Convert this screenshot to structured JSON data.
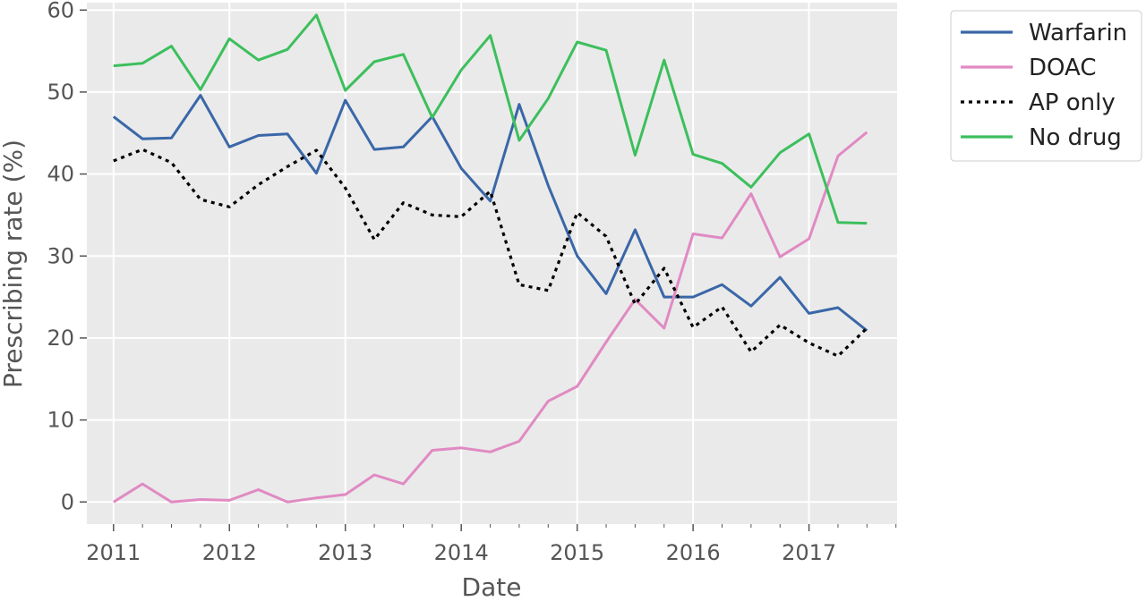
{
  "chart_data": {
    "type": "line",
    "xlabel": "Date",
    "ylabel": "Prescribing rate (%)",
    "xlim": [
      2010.77,
      2017.76
    ],
    "ylim": [
      -2.7,
      60.9
    ],
    "x_ticks": [
      2011,
      2012,
      2013,
      2014,
      2015,
      2016,
      2017
    ],
    "y_ticks": [
      0,
      10,
      20,
      30,
      40,
      50,
      60
    ],
    "grid": true,
    "legend_position": "upper-right-outside",
    "x": [
      2011.0,
      2011.25,
      2011.5,
      2011.75,
      2012.0,
      2012.25,
      2012.5,
      2012.75,
      2013.0,
      2013.25,
      2013.5,
      2013.75,
      2014.0,
      2014.25,
      2014.5,
      2014.75,
      2015.0,
      2015.25,
      2015.5,
      2015.75,
      2016.0,
      2016.25,
      2016.5,
      2016.75,
      2017.0,
      2017.25,
      2017.5
    ],
    "series": [
      {
        "name": "Warfarin",
        "color": "#3a67a8",
        "style": "solid",
        "values": [
          47.0,
          44.3,
          44.4,
          49.6,
          43.3,
          44.7,
          44.9,
          40.1,
          49.0,
          43.0,
          43.3,
          47.0,
          40.7,
          36.7,
          48.5,
          38.6,
          30.0,
          25.4,
          33.2,
          25.0,
          25.0,
          26.5,
          23.9,
          27.4,
          23.0,
          23.7,
          20.9
        ]
      },
      {
        "name": "DOAC",
        "color": "#e08ac3",
        "style": "solid",
        "values": [
          0.0,
          2.2,
          0.0,
          0.3,
          0.2,
          1.5,
          0.0,
          0.5,
          0.9,
          3.3,
          2.2,
          6.3,
          6.6,
          6.1,
          7.4,
          12.3,
          14.1,
          19.5,
          24.7,
          21.2,
          32.7,
          32.2,
          37.6,
          29.9,
          32.1,
          42.2,
          45.1
        ]
      },
      {
        "name": "AP only",
        "color": "#000000",
        "style": "dotted",
        "values": [
          41.6,
          43.0,
          41.4,
          36.9,
          36.0,
          38.7,
          40.9,
          42.9,
          38.3,
          32.0,
          36.5,
          35.0,
          34.8,
          37.9,
          26.5,
          25.8,
          35.3,
          32.4,
          24.1,
          28.5,
          21.3,
          23.8,
          18.3,
          21.6,
          19.4,
          17.8,
          21.2
        ]
      },
      {
        "name": "No drug",
        "color": "#3cbf5c",
        "style": "solid",
        "values": [
          53.2,
          53.5,
          55.6,
          50.3,
          56.5,
          53.9,
          55.2,
          59.4,
          50.2,
          53.7,
          54.6,
          46.9,
          52.7,
          56.9,
          44.1,
          49.2,
          56.1,
          55.1,
          42.3,
          53.9,
          42.4,
          41.3,
          38.4,
          42.6,
          44.9,
          34.1,
          34.0
        ]
      }
    ]
  }
}
